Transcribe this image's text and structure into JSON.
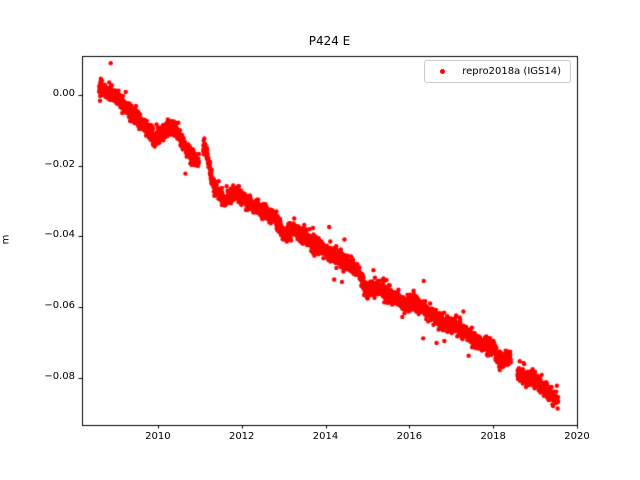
{
  "figure": {
    "background": "#ffffff",
    "spine_color": "#000000",
    "text_color": "#000000"
  },
  "chart_data": {
    "type": "scatter",
    "title": "P424 E",
    "xlabel": "",
    "ylabel": "m",
    "grid": false,
    "legend": {
      "position": "upper right",
      "entries": [
        {
          "label": "repro2018a (IGS14)",
          "marker_color": "#ff0000"
        }
      ]
    },
    "xlim": [
      2008.19,
      2020.0
    ],
    "ylim": [
      -0.0932,
      0.0109
    ],
    "xticks": {
      "values": [
        2010,
        2012,
        2014,
        2016,
        2018,
        2020
      ],
      "labels": [
        "2010",
        "2012",
        "2014",
        "2016",
        "2018",
        "2020"
      ]
    },
    "yticks": {
      "values": [
        0.0,
        -0.02,
        -0.04,
        -0.06,
        -0.08
      ],
      "labels": [
        "0.00",
        "−0.02",
        "−0.04",
        "−0.06",
        "−0.08"
      ]
    },
    "series": [
      {
        "name": "repro2018a (IGS14)",
        "marker": {
          "shape": "point",
          "color": "#ff0000",
          "radius_px": 2.2
        },
        "x_start": 2008.6,
        "x_end": 2019.55,
        "n_points": 3300,
        "noise_std_m": 0.0011,
        "outlier_fraction": 0.015,
        "outlier_extra_std_m": 0.004,
        "seed": 42,
        "gaps": [
          [
            2010.98,
            2011.08
          ],
          [
            2018.42,
            2018.58
          ]
        ],
        "trend_anchors": [
          [
            2008.6,
            0.002
          ],
          [
            2008.9,
            0.0005
          ],
          [
            2009.1,
            -0.002
          ],
          [
            2009.4,
            -0.0055
          ],
          [
            2009.7,
            -0.009
          ],
          [
            2009.95,
            -0.0125
          ],
          [
            2010.15,
            -0.0105
          ],
          [
            2010.4,
            -0.009
          ],
          [
            2010.7,
            -0.016
          ],
          [
            2010.95,
            -0.019
          ],
          [
            2011.12,
            -0.0145
          ],
          [
            2011.35,
            -0.027
          ],
          [
            2011.6,
            -0.03
          ],
          [
            2011.85,
            -0.0275
          ],
          [
            2012.15,
            -0.0305
          ],
          [
            2012.5,
            -0.033
          ],
          [
            2012.8,
            -0.0345
          ],
          [
            2013.0,
            -0.04
          ],
          [
            2013.25,
            -0.038
          ],
          [
            2013.55,
            -0.0405
          ],
          [
            2013.85,
            -0.043
          ],
          [
            2014.15,
            -0.045
          ],
          [
            2014.45,
            -0.047
          ],
          [
            2014.75,
            -0.049
          ],
          [
            2014.95,
            -0.055
          ],
          [
            2015.25,
            -0.0545
          ],
          [
            2015.55,
            -0.0565
          ],
          [
            2015.85,
            -0.059
          ],
          [
            2016.15,
            -0.0585
          ],
          [
            2016.45,
            -0.061
          ],
          [
            2016.75,
            -0.064
          ],
          [
            2017.05,
            -0.065
          ],
          [
            2017.35,
            -0.067
          ],
          [
            2017.65,
            -0.07
          ],
          [
            2017.95,
            -0.071
          ],
          [
            2018.2,
            -0.075
          ],
          [
            2018.4,
            -0.0745
          ],
          [
            2018.6,
            -0.079
          ],
          [
            2018.9,
            -0.08
          ],
          [
            2019.15,
            -0.082
          ],
          [
            2019.4,
            -0.085
          ],
          [
            2019.55,
            -0.086
          ]
        ]
      }
    ]
  }
}
